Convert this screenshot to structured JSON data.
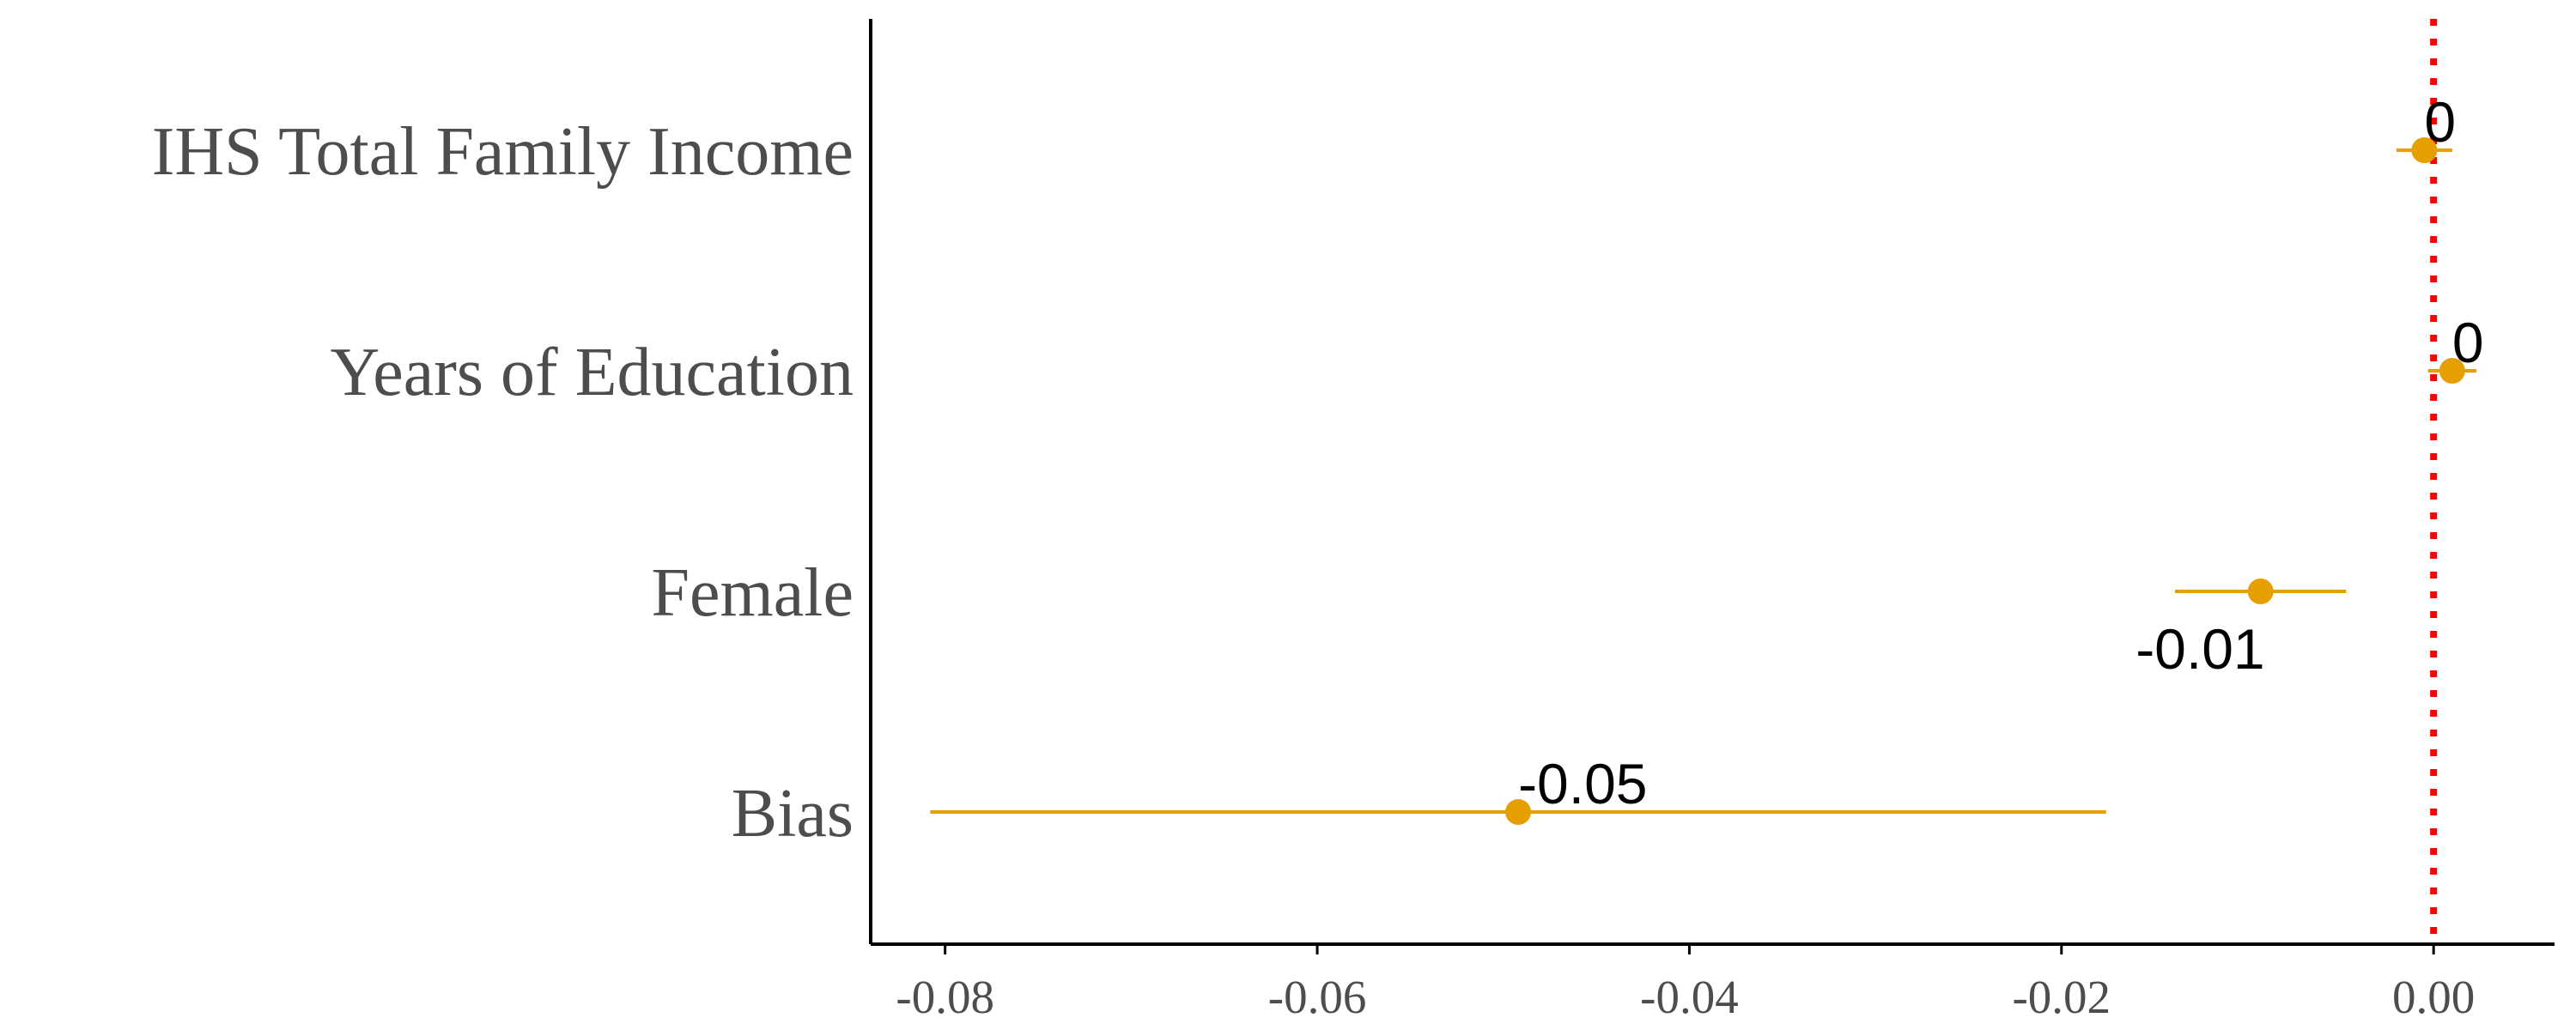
{
  "chart_data": {
    "type": "forest",
    "title": "",
    "xlabel": "",
    "ylabel": "",
    "xlim": [
      -0.084,
      0.0065
    ],
    "x_ticks": [
      -0.08,
      -0.06,
      -0.04,
      -0.02,
      0.0
    ],
    "x_tick_labels": [
      "-0.08",
      "-0.06",
      "-0.04",
      "-0.02",
      "0.00"
    ],
    "reference_line": {
      "x": 0,
      "style": "dotted",
      "color": "#ff0000"
    },
    "color": "#e69f00",
    "grid": false,
    "legend": "none",
    "rows": [
      {
        "label": "IHS Total Family Income",
        "estimate": -0.0005,
        "ci_low": -0.002,
        "ci_high": 0.001,
        "value_label": "0",
        "label_side": "above-right"
      },
      {
        "label": "Years of Education",
        "estimate": 0.001,
        "ci_low": -0.0003,
        "ci_high": 0.0023,
        "value_label": "0",
        "label_side": "above-right"
      },
      {
        "label": "Female",
        "estimate": -0.0093,
        "ci_low": -0.0139,
        "ci_high": -0.0047,
        "value_label": "-0.01",
        "label_side": "below-left"
      },
      {
        "label": "Bias",
        "estimate": -0.0492,
        "ci_low": -0.0808,
        "ci_high": -0.0176,
        "value_label": "-0.05",
        "label_side": "above-right"
      }
    ]
  }
}
